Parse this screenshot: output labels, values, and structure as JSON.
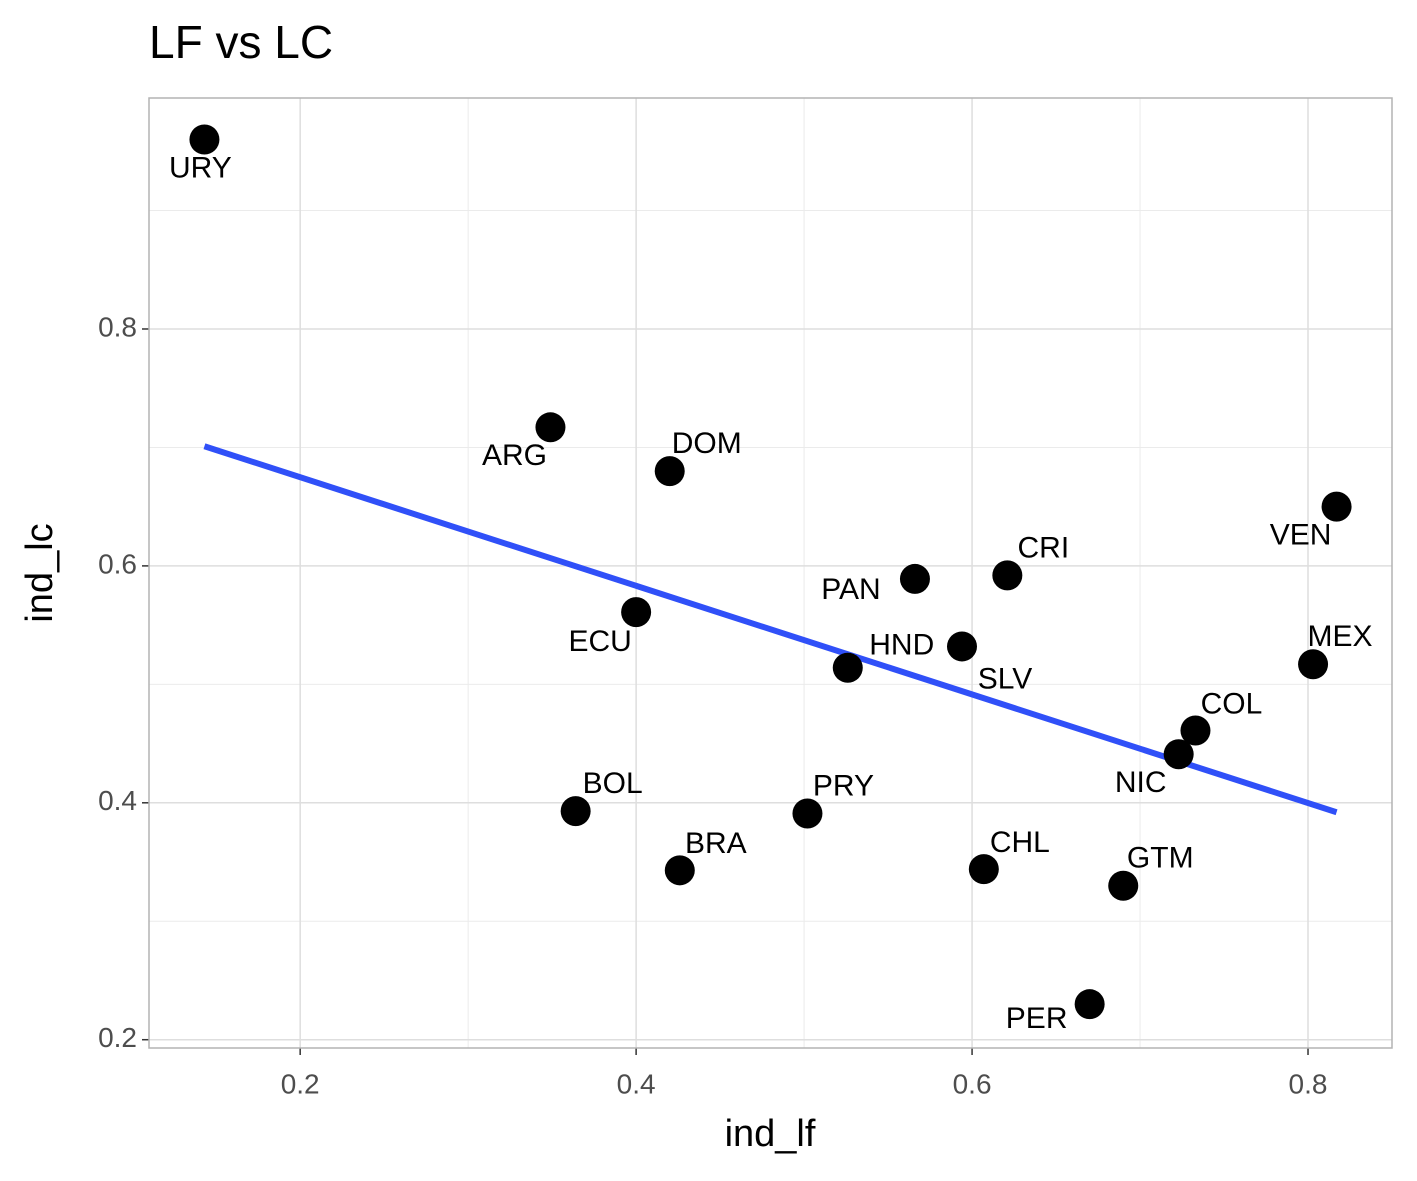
{
  "chart_data": {
    "type": "scatter",
    "title": "LF vs LC",
    "x_label": "ind_lf",
    "y_label": "ind_lc",
    "series": [
      {
        "color": "#000000",
        "labels": [
          "URY",
          "ARG",
          "DOM",
          "ECU",
          "PAN",
          "CRI",
          "HND",
          "SLV",
          "VEN",
          "MEX",
          "COL",
          "NIC",
          "BOL",
          "PRY",
          "BRA",
          "CHL",
          "GTM",
          "PER"
        ],
        "x": [
          0.143,
          0.349,
          0.42,
          0.4,
          0.566,
          0.621,
          0.526,
          0.594,
          0.817,
          0.803,
          0.733,
          0.723,
          0.364,
          0.502,
          0.426,
          0.607,
          0.69,
          0.67
        ],
        "values": [
          0.96,
          0.717,
          0.68,
          0.561,
          0.589,
          0.592,
          0.514,
          0.532,
          0.65,
          0.517,
          0.461,
          0.441,
          0.393,
          0.391,
          0.343,
          0.344,
          0.33,
          0.23
        ]
      }
    ],
    "trendline": {
      "color": "#3050f8",
      "x": [
        0.143,
        0.817
      ],
      "y": [
        0.701,
        0.392
      ]
    },
    "xlim": [
      0.11,
      0.85
    ],
    "ylim": [
      0.193,
      0.995
    ],
    "xticks": [
      0.2,
      0.4,
      0.6,
      0.8
    ],
    "yticks": [
      0.2,
      0.4,
      0.6,
      0.8
    ],
    "xminor": [
      0.3,
      0.5,
      0.7
    ],
    "yminor": [
      0.3,
      0.5,
      0.7,
      0.9
    ],
    "grid": true
  }
}
